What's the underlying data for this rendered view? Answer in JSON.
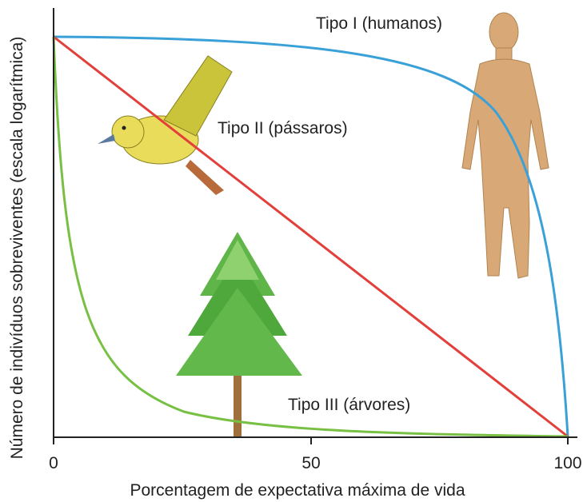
{
  "axes": {
    "y_label": "Número de indivíduos sobreviventes (escala logarítmica)",
    "x_label": "Porcentagem de expectativa máxima de vida",
    "x_ticks": [
      "0",
      "50",
      "100"
    ]
  },
  "curves": [
    {
      "label": "Tipo I (humanos)"
    },
    {
      "label": "Tipo II (pássaros)"
    },
    {
      "label": "Tipo III (árvores)"
    }
  ]
}
